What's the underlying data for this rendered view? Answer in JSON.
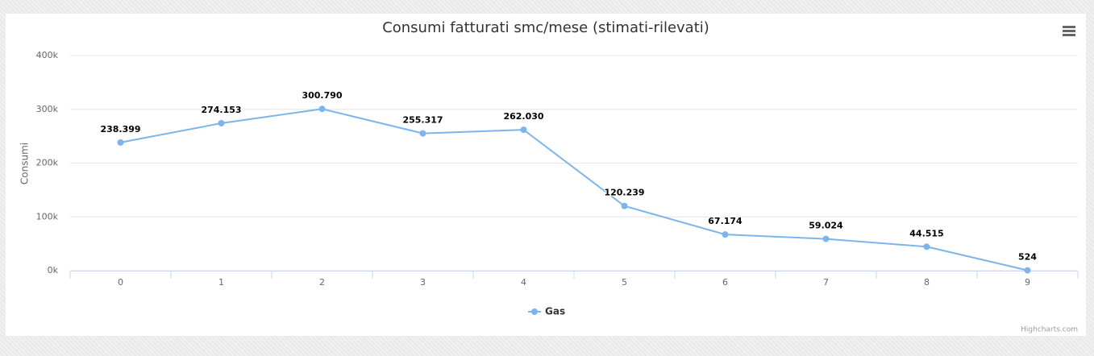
{
  "chart_data": {
    "type": "line",
    "title": "Consumi fatturati smc/mese (stimati-rilevati)",
    "categories": [
      "0",
      "1",
      "2",
      "3",
      "4",
      "5",
      "6",
      "7",
      "8",
      "9"
    ],
    "series": [
      {
        "name": "Gas",
        "color": "#7cb5ec",
        "values": [
          238399,
          274153,
          300790,
          255317,
          262030,
          120239,
          67174,
          59024,
          44515,
          524
        ],
        "value_labels": [
          "238.399",
          "274.153",
          "300.790",
          "255.317",
          "262.030",
          "120.239",
          "67.174",
          "59.024",
          "44.515",
          "524"
        ]
      }
    ],
    "ylabel": "Consumi",
    "ylim": [
      0,
      400000
    ],
    "yticks": [
      {
        "value": 0,
        "label": "0k"
      },
      {
        "value": 100000,
        "label": "100k"
      },
      {
        "value": 200000,
        "label": "200k"
      },
      {
        "value": 300000,
        "label": "300k"
      },
      {
        "value": 400000,
        "label": "400k"
      }
    ],
    "grid": true,
    "credits": "Highcharts.com"
  }
}
